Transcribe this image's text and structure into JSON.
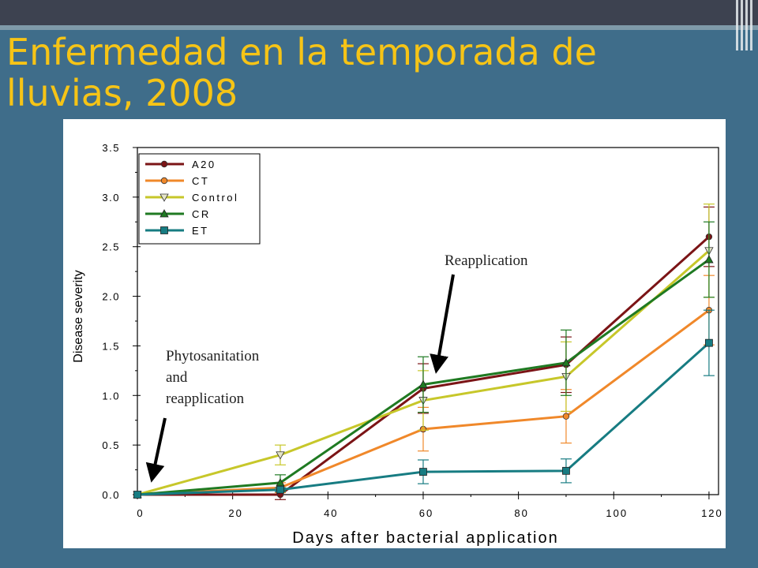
{
  "slide": {
    "title": "Enfermedad en la temporada de lluvias, 2008",
    "colors": {
      "background": "#3f6d8a",
      "title": "#f6c416",
      "topbar": "#3d4250"
    }
  },
  "chart_data": {
    "type": "line",
    "xlabel": "Days after bacterial application",
    "ylabel": "Disease severity",
    "xlim": [
      0,
      122
    ],
    "ylim": [
      0,
      3.5
    ],
    "xticks": [
      0,
      20,
      40,
      60,
      80,
      100,
      120
    ],
    "xtick_labels": [
      "0",
      "20",
      "40",
      "60",
      "80",
      "100",
      "120"
    ],
    "yticks": [
      0,
      0.5,
      1.0,
      1.5,
      2.0,
      2.5,
      3.0,
      3.5
    ],
    "ytick_labels": [
      "0.0",
      "0.5",
      "1.0",
      "1.5",
      "2.0",
      "2.5",
      "3.0",
      "3.5"
    ],
    "x": [
      0,
      30,
      60,
      90,
      120
    ],
    "legend_position": "top-left",
    "grid": false,
    "series": [
      {
        "name": "A20",
        "color": "#7b1416",
        "marker": "circle",
        "values": [
          0,
          0,
          1.07,
          1.31,
          2.6
        ],
        "errors": [
          0,
          0.05,
          0.25,
          0.28,
          0.3
        ]
      },
      {
        "name": "CT",
        "color": "#f0882a",
        "marker": "circle",
        "values": [
          0,
          0.07,
          0.66,
          0.79,
          1.86
        ],
        "errors": [
          0,
          0.05,
          0.22,
          0.27,
          0.35
        ]
      },
      {
        "name": "Control",
        "color": "#c7c72a",
        "marker": "triangle-down",
        "values": [
          0,
          0.4,
          0.95,
          1.19,
          2.46
        ],
        "errors": [
          0,
          0.1,
          0.3,
          0.35,
          0.47
        ]
      },
      {
        "name": "CR",
        "color": "#1f7a22",
        "marker": "triangle-up",
        "values": [
          0,
          0.12,
          1.11,
          1.33,
          2.37
        ],
        "errors": [
          0,
          0.08,
          0.28,
          0.33,
          0.38
        ]
      },
      {
        "name": "ET",
        "color": "#177c82",
        "marker": "square",
        "values": [
          0,
          0.05,
          0.23,
          0.24,
          1.53
        ],
        "errors": [
          0,
          0.02,
          0.12,
          0.12,
          0.33
        ]
      }
    ],
    "annotations": [
      {
        "text": "Phytosanitation\nand\nreapplication"
      },
      {
        "text": "Reapplication"
      }
    ]
  }
}
